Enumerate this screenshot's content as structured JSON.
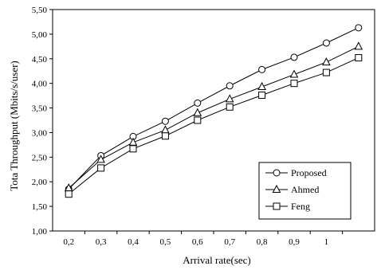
{
  "chart_data": {
    "type": "line",
    "title": "",
    "xlabel": "Arrival rate(sec)",
    "ylabel": "Tota Throughput (Mbits/s/user)",
    "categories": [
      "0,2",
      "0,3",
      "0,4",
      "0,5",
      "0,6",
      "0,7",
      "0,8",
      "0,9",
      "1",
      ""
    ],
    "x_tick_labels": [
      "0,2",
      "0,3",
      "0,4",
      "0,5",
      "0,6",
      "0,7",
      "0,8",
      "0,9",
      "1"
    ],
    "ylim": [
      1.0,
      5.5
    ],
    "y_ticks": [
      1.0,
      1.5,
      2.0,
      2.5,
      3.0,
      3.5,
      4.0,
      4.5,
      5.0,
      5.5
    ],
    "y_tick_labels": [
      "1,00",
      "1,50",
      "2,00",
      "2,50",
      "3,00",
      "3,50",
      "4,00",
      "4,50",
      "5,00",
      "5,50"
    ],
    "grid": false,
    "legend_position": "bottom-right",
    "series": [
      {
        "name": "Proposed",
        "marker": "circle",
        "values": [
          1.85,
          2.53,
          2.92,
          3.23,
          3.6,
          3.95,
          4.28,
          4.53,
          4.82,
          5.13
        ]
      },
      {
        "name": "Ahmed",
        "marker": "triangle",
        "values": [
          1.87,
          2.45,
          2.8,
          3.05,
          3.4,
          3.68,
          3.93,
          4.18,
          4.43,
          4.75
        ]
      },
      {
        "name": "Feng",
        "marker": "square",
        "values": [
          1.75,
          2.28,
          2.67,
          2.93,
          3.25,
          3.52,
          3.76,
          4.0,
          4.22,
          4.52
        ]
      }
    ]
  }
}
